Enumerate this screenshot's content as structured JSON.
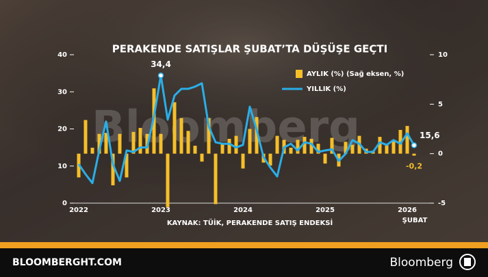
{
  "chart_data": {
    "type": "combo",
    "title": "PERAKENDE SATIŞLAR ŞUBAT’TA DÜŞÜŞE GEÇTI",
    "source": "KAYNAK: TÜİK, PERAKENDE SATIŞ ENDEKSİ",
    "annotation": "ŞUBAT",
    "categories": [
      "2022",
      null,
      null,
      null,
      null,
      null,
      null,
      null,
      null,
      null,
      null,
      null,
      "2023",
      null,
      null,
      null,
      null,
      null,
      null,
      null,
      null,
      null,
      null,
      null,
      "2024",
      null,
      null,
      null,
      null,
      null,
      null,
      null,
      null,
      null,
      null,
      null,
      "2025",
      null,
      null,
      null,
      null,
      null,
      null,
      null,
      null,
      null,
      null,
      null,
      "2026",
      null
    ],
    "ylim": [
      0,
      40
    ],
    "yticks": [
      0,
      10,
      20,
      30,
      40
    ],
    "y2lim": [
      -5,
      10
    ],
    "y2ticks": [
      -5,
      0,
      5,
      10
    ],
    "legend": "top-right",
    "series": [
      {
        "name": "AYLIK (%) (Sağ eksen, %)",
        "type": "bar",
        "axis": "y2",
        "color": "#f5bf2a",
        "values": [
          -2.4,
          3.4,
          0.6,
          2.0,
          2.1,
          -3.2,
          2.0,
          -2.4,
          2.2,
          2.6,
          2.0,
          6.6,
          2.0,
          -5.4,
          5.2,
          3.6,
          2.3,
          0.8,
          -0.8,
          3.6,
          -5.1,
          1.0,
          1.5,
          1.8,
          -1.5,
          2.5,
          3.7,
          -0.9,
          -1.2,
          1.8,
          1.4,
          0.6,
          1.4,
          1.7,
          1.5,
          1.0,
          -1.0,
          1.6,
          -1.3,
          1.2,
          0.9,
          1.8,
          0.5,
          0.3,
          1.7,
          0.9,
          1.4,
          2.4,
          2.8,
          -0.2
        ],
        "value_labels": [
          null,
          null,
          null,
          null,
          null,
          null,
          null,
          null,
          null,
          null,
          null,
          null,
          null,
          null,
          null,
          null,
          null,
          null,
          null,
          null,
          null,
          null,
          null,
          null,
          null,
          null,
          null,
          null,
          null,
          null,
          null,
          null,
          null,
          null,
          null,
          null,
          null,
          null,
          null,
          null,
          null,
          null,
          null,
          null,
          null,
          null,
          null,
          null,
          null,
          "-0,2"
        ]
      },
      {
        "name": "YILLIK (%)",
        "type": "line",
        "color": "#2aaee8",
        "values": [
          10.5,
          7.8,
          5.4,
          14.2,
          22,
          10.5,
          6,
          14.2,
          13.8,
          15,
          15,
          23.4,
          34.4,
          22.5,
          29,
          30.8,
          30.8,
          31.4,
          32.3,
          20.7,
          16.4,
          16,
          16,
          15,
          15.7,
          26,
          19.8,
          12.4,
          9.6,
          7.2,
          15,
          16,
          14.2,
          16.4,
          16,
          13.8,
          14.2,
          14.5,
          11.4,
          13.3,
          17,
          16,
          13.8,
          13.8,
          16.4,
          15.7,
          17,
          16,
          18.8,
          15.6
        ],
        "value_labels": [
          null,
          null,
          null,
          null,
          null,
          null,
          null,
          null,
          null,
          null,
          null,
          null,
          "34,4",
          null,
          null,
          null,
          null,
          null,
          null,
          null,
          null,
          null,
          null,
          null,
          null,
          null,
          null,
          null,
          null,
          null,
          null,
          null,
          null,
          null,
          null,
          null,
          null,
          null,
          null,
          null,
          null,
          null,
          null,
          null,
          null,
          null,
          null,
          null,
          null,
          "15,6"
        ]
      }
    ]
  },
  "watermark": "Bloomberg",
  "footer": {
    "site": "BLOOMBERGHT.COM",
    "brand": "Bloomberg"
  }
}
